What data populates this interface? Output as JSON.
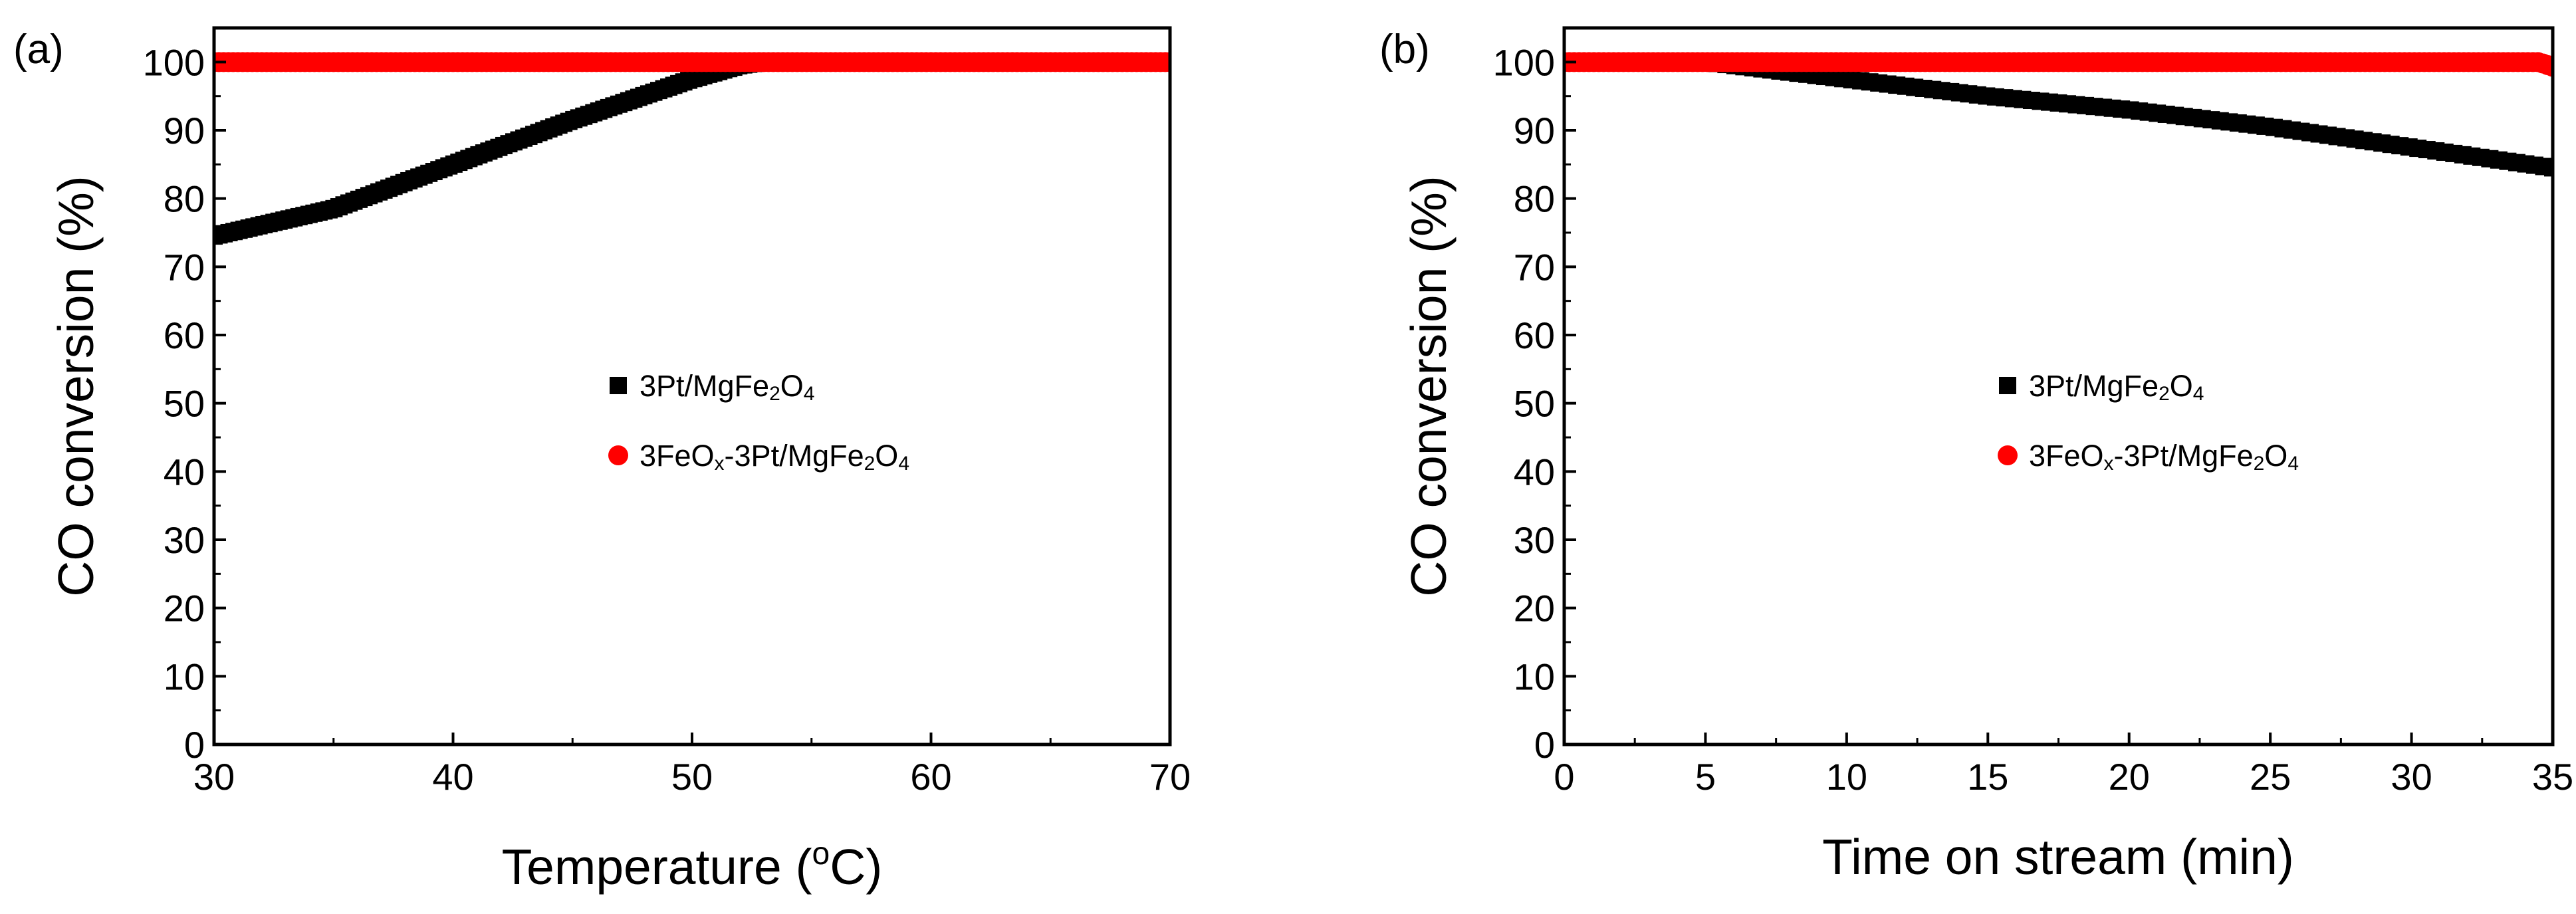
{
  "chart_data": [
    {
      "type": "scatter",
      "panel_label": "(a)",
      "xlabel": "Temperature",
      "xlabel_unit_open": "(",
      "xlabel_unit_sup": "o",
      "xlabel_unit_rest": "C)",
      "ylabel": "CO conversion (%)",
      "xlim": [
        30,
        70
      ],
      "ylim": [
        0,
        105
      ],
      "xticks": [
        30,
        40,
        50,
        60,
        70
      ],
      "yticks": [
        0,
        10,
        20,
        30,
        40,
        50,
        60,
        70,
        80,
        90,
        100
      ],
      "legend_position": "center",
      "series": [
        {
          "name": "3Pt/MgFe2O4",
          "name_parts": [
            {
              "t": "3Pt/MgFe"
            },
            {
              "t": "2",
              "sub": true
            },
            {
              "t": "O"
            },
            {
              "t": "4",
              "sub": true
            }
          ],
          "marker": "square",
          "color": "#000000",
          "points": [
            [
              30,
              74.5
            ],
            [
              35,
              78.5
            ],
            [
              40,
              85
            ],
            [
              45,
              91.5
            ],
            [
              50,
              97.5
            ],
            [
              52,
              99.5
            ],
            [
              53,
              100
            ]
          ]
        },
        {
          "name": "3FeOx-3Pt/MgFe2O4",
          "name_parts": [
            {
              "t": "3FeO"
            },
            {
              "t": "x",
              "sub": true
            },
            {
              "t": "-3Pt/MgFe"
            },
            {
              "t": "2",
              "sub": true
            },
            {
              "t": "O"
            },
            {
              "t": "4",
              "sub": true
            }
          ],
          "marker": "circle",
          "color": "#ff0000",
          "points": [
            [
              30,
              100
            ],
            [
              70,
              100
            ]
          ]
        }
      ]
    },
    {
      "type": "scatter",
      "panel_label": "(b)",
      "xlabel": "Time on stream (min)",
      "ylabel": "CO conversion (%)",
      "xlim": [
        0,
        35
      ],
      "ylim": [
        0,
        105
      ],
      "xticks": [
        0,
        5,
        10,
        15,
        20,
        25,
        30,
        35
      ],
      "yticks": [
        0,
        10,
        20,
        30,
        40,
        50,
        60,
        70,
        80,
        90,
        100
      ],
      "legend_position": "center",
      "series": [
        {
          "name": "3Pt/MgFe2O4",
          "name_parts": [
            {
              "t": "3Pt/MgFe"
            },
            {
              "t": "2",
              "sub": true
            },
            {
              "t": "O"
            },
            {
              "t": "4",
              "sub": true
            }
          ],
          "marker": "square",
          "color": "#000000",
          "points": [
            [
              0,
              100
            ],
            [
              5,
              100
            ],
            [
              6,
              99.5
            ],
            [
              10,
              97.5
            ],
            [
              15,
              95
            ],
            [
              20,
              93
            ],
            [
              25,
              90.5
            ],
            [
              30,
              87.5
            ],
            [
              35,
              84.5
            ]
          ]
        },
        {
          "name": "3FeOx-3Pt/MgFe2O4",
          "name_parts": [
            {
              "t": "3FeO"
            },
            {
              "t": "x",
              "sub": true
            },
            {
              "t": "-3Pt/MgFe"
            },
            {
              "t": "2",
              "sub": true
            },
            {
              "t": "O"
            },
            {
              "t": "4",
              "sub": true
            }
          ],
          "marker": "circle",
          "color": "#ff0000",
          "points": [
            [
              0,
              100
            ],
            [
              34.5,
              100
            ],
            [
              35,
              99.3
            ]
          ]
        }
      ]
    }
  ]
}
